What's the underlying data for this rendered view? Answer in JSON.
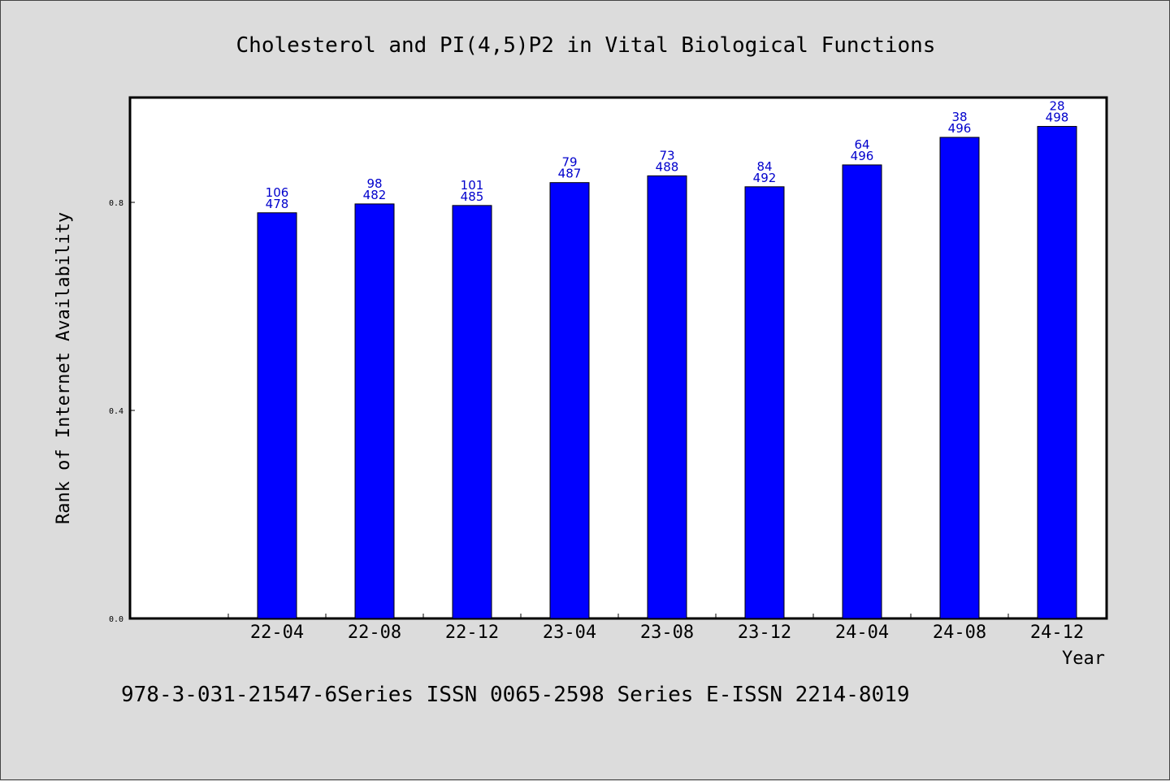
{
  "chart_data": {
    "type": "bar",
    "title": "Cholesterol and PI(4,5)P2 in Vital Biological Functions",
    "xlabel": "Year",
    "ylabel": "Rank of Internet Availability",
    "categories": [
      "22-04",
      "22-08",
      "22-12",
      "23-04",
      "23-08",
      "23-12",
      "24-04",
      "24-08",
      "24-12"
    ],
    "values": [
      0.78,
      0.797,
      0.794,
      0.838,
      0.851,
      0.83,
      0.872,
      0.925,
      0.946
    ],
    "labels_top": [
      "106",
      "98",
      "101",
      "79",
      "73",
      "84",
      "64",
      "38",
      "28"
    ],
    "labels_bottom": [
      "478",
      "482",
      "485",
      "487",
      "488",
      "492",
      "496",
      "496",
      "498"
    ],
    "yticks": [
      "0.0",
      "0.4",
      "0.8"
    ],
    "ytick_values": [
      0.0,
      0.4,
      0.8
    ],
    "ylim": [
      0,
      1.0
    ],
    "grid": false,
    "legend": "none",
    "colors": {
      "bar": "#0000ff",
      "data_label": "#0000cc",
      "background": "#dcdcdc",
      "plot_background": "#ffffff"
    }
  },
  "footer": {
    "text": "978-3-031-21547-6Series ISSN 0065-2598 Series E-ISSN 2214-8019"
  }
}
